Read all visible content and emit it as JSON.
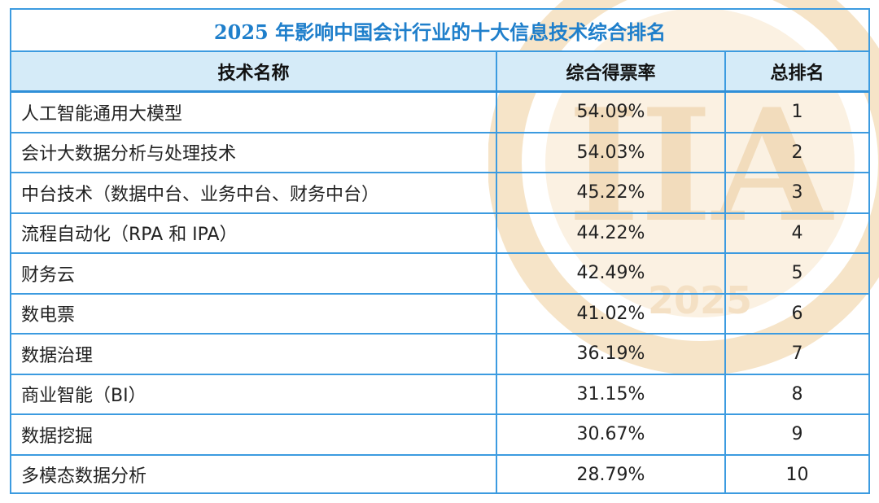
{
  "title": "2025 年影响中国会计行业的十大信息技术综合排名",
  "headers": [
    "技术名称",
    "综合得票率",
    "总排名"
  ],
  "rows": [
    {
      "name": "人工智能通用大模型",
      "rate": "54.09%",
      "rank": "1"
    },
    {
      "name": "会计大数据分析与处理技术",
      "rate": "54.03%",
      "rank": "2"
    },
    {
      "name": "中台技术（数据中台、业务中台、财务中台）",
      "rate": "45.22%",
      "rank": "3"
    },
    {
      "name": "流程自动化（RPA 和 IPA）",
      "rate": "44.22%",
      "rank": "4"
    },
    {
      "name": "财务云",
      "rate": "42.49%",
      "rank": "5"
    },
    {
      "name": "数电票",
      "rate": "41.02%",
      "rank": "6"
    },
    {
      "name": "数据治理",
      "rate": "36.19%",
      "rank": "7"
    },
    {
      "name": "商业智能（BI）",
      "rate": "31.15%",
      "rank": "8"
    },
    {
      "name": "数据挖掘",
      "rate": "30.67%",
      "rank": "9"
    },
    {
      "name": "多模态数据分析",
      "rate": "28.79%",
      "rank": "10"
    }
  ],
  "watermark": {
    "year": "2025",
    "letters": "IIA",
    "color": "#f3d9b0"
  }
}
